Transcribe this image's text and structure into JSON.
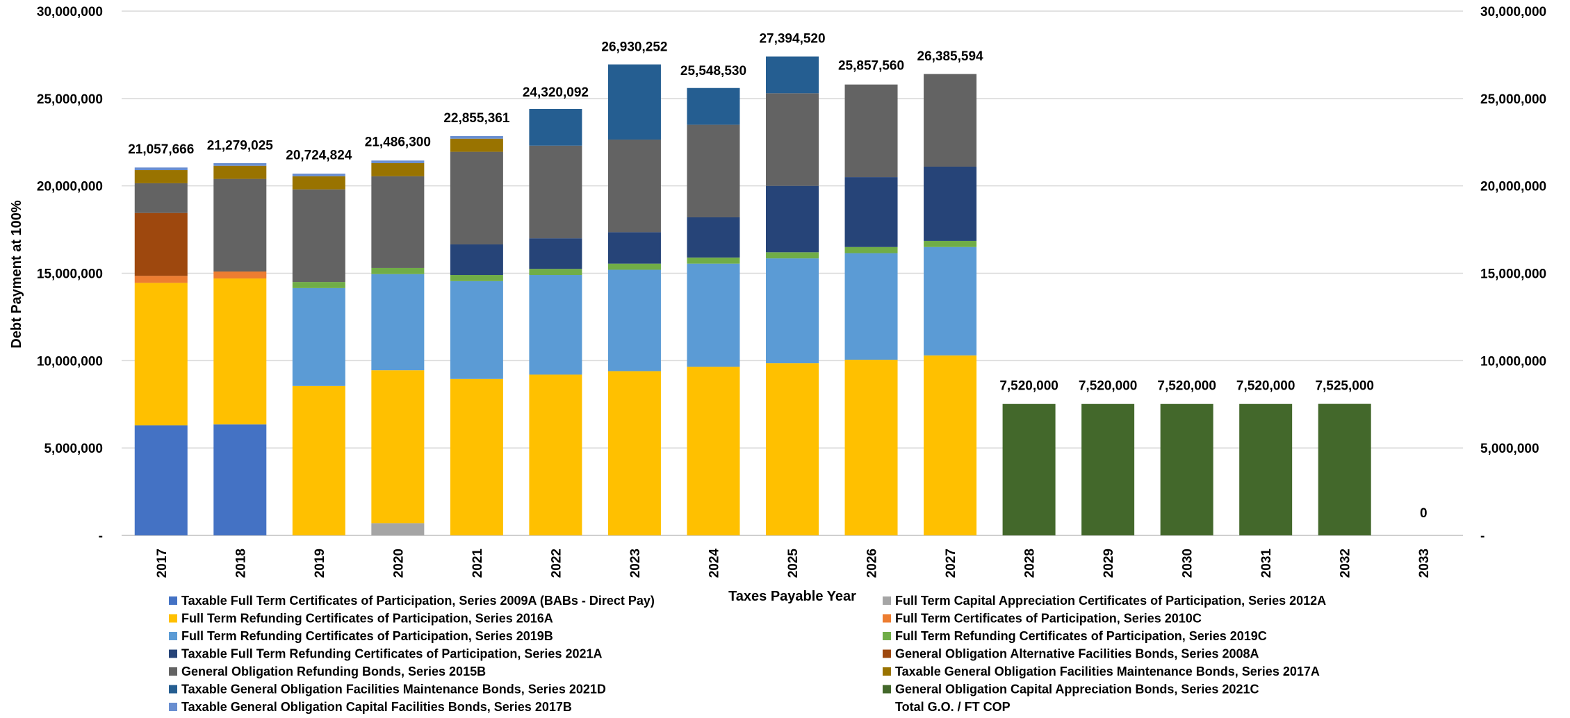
{
  "chart_data": {
    "type": "bar",
    "stacked": true,
    "title": "",
    "xlabel": "Taxes Payable Year",
    "ylabel": "Debt Payment at 100%",
    "ylim": [
      0,
      30000000
    ],
    "y_ticks": [
      {
        "value": 0,
        "label": "-"
      },
      {
        "value": 5000000,
        "label": "5,000,000"
      },
      {
        "value": 10000000,
        "label": "10,000,000"
      },
      {
        "value": 15000000,
        "label": "15,000,000"
      },
      {
        "value": 20000000,
        "label": "20,000,000"
      },
      {
        "value": 25000000,
        "label": "25,000,000"
      },
      {
        "value": 30000000,
        "label": "30,000,000"
      }
    ],
    "secondary_y_axis": true,
    "grid": true,
    "legend_position": "bottom",
    "categories": [
      "2017",
      "2018",
      "2019",
      "2020",
      "2021",
      "2022",
      "2023",
      "2024",
      "2025",
      "2026",
      "2027",
      "2028",
      "2029",
      "2030",
      "2031",
      "2032",
      "2033"
    ],
    "series": [
      {
        "name": "Taxable Full Term Certificates of Participation, Series 2009A (BABs - Direct Pay)",
        "color": "#4472C4",
        "values": [
          6300000,
          6350000,
          0,
          0,
          0,
          0,
          0,
          0,
          0,
          0,
          0,
          0,
          0,
          0,
          0,
          0,
          0
        ]
      },
      {
        "name": "Full Term Capital Appreciation Certificates of Participation, Series 2012A",
        "color": "#A5A5A5",
        "values": [
          0,
          0,
          0,
          700000,
          0,
          0,
          0,
          0,
          0,
          0,
          0,
          0,
          0,
          0,
          0,
          0,
          0
        ]
      },
      {
        "name": "Full Term Refunding Certificates of Participation, Series 2016A",
        "color": "#FFC000",
        "values": [
          8150000,
          8350000,
          8550000,
          8750000,
          8950000,
          9200000,
          9400000,
          9650000,
          9850000,
          10050000,
          10300000,
          0,
          0,
          0,
          0,
          0,
          0
        ]
      },
      {
        "name": "Full Term Certificates of Participation, Series 2010C",
        "color": "#ED7D31",
        "values": [
          400000,
          400000,
          0,
          0,
          0,
          0,
          0,
          0,
          0,
          0,
          0,
          0,
          0,
          0,
          0,
          0,
          0
        ]
      },
      {
        "name": "Full Term Refunding Certificates of Participation, Series 2019B",
        "color": "#5B9BD5",
        "values": [
          0,
          0,
          5600000,
          5500000,
          5600000,
          5700000,
          5800000,
          5900000,
          6000000,
          6100000,
          6200000,
          0,
          0,
          0,
          0,
          0,
          0
        ]
      },
      {
        "name": "Full Term Refunding Certificates of Participation, Series 2019C",
        "color": "#70AD47",
        "values": [
          0,
          0,
          350000,
          350000,
          350000,
          350000,
          350000,
          350000,
          350000,
          350000,
          350000,
          0,
          0,
          0,
          0,
          0,
          0
        ]
      },
      {
        "name": "Taxable Full Term Refunding Certificates of Participation, Series 2021A",
        "color": "#264478",
        "values": [
          0,
          0,
          0,
          0,
          1750000,
          1750000,
          1800000,
          2300000,
          3800000,
          4000000,
          4250000,
          0,
          0,
          0,
          0,
          0,
          0
        ]
      },
      {
        "name": "General Obligation Alternative Facilities Bonds, Series 2008A",
        "color": "#9E480E",
        "values": [
          3600000,
          0,
          0,
          0,
          0,
          0,
          0,
          0,
          0,
          0,
          0,
          0,
          0,
          0,
          0,
          0,
          0
        ]
      },
      {
        "name": "General Obligation Refunding Bonds, Series 2015B",
        "color": "#636363",
        "values": [
          1700000,
          5300000,
          5300000,
          5250000,
          5300000,
          5300000,
          5300000,
          5300000,
          5300000,
          5300000,
          5300000,
          0,
          0,
          0,
          0,
          0,
          0
        ]
      },
      {
        "name": "Taxable General Obligation Facilities Maintenance Bonds, Series 2017A",
        "color": "#997300",
        "values": [
          750000,
          750000,
          750000,
          750000,
          750000,
          0,
          0,
          0,
          0,
          0,
          0,
          0,
          0,
          0,
          0,
          0,
          0
        ]
      },
      {
        "name": "Taxable General Obligation Facilities Maintenance Bonds, Series 2021D",
        "color": "#255E91",
        "values": [
          0,
          0,
          0,
          0,
          0,
          2100000,
          4300000,
          2100000,
          2100000,
          0,
          0,
          0,
          0,
          0,
          0,
          0,
          0
        ]
      },
      {
        "name": "General Obligation Capital Appreciation Bonds, Series 2021C",
        "color": "#43682B",
        "values": [
          0,
          0,
          0,
          0,
          0,
          0,
          0,
          0,
          0,
          0,
          0,
          7520000,
          7520000,
          7520000,
          7520000,
          7525000,
          0
        ]
      },
      {
        "name": "Taxable General Obligation Capital Facilities Bonds, Series 2017B",
        "color": "#698ED0",
        "values": [
          150000,
          150000,
          150000,
          150000,
          150000,
          0,
          0,
          0,
          0,
          0,
          0,
          0,
          0,
          0,
          0,
          0,
          0
        ]
      }
    ],
    "totals_series_name": "Total G.O. / FT COP",
    "totals": [
      {
        "value": 21057666,
        "label": "21,057,666"
      },
      {
        "value": 21279025,
        "label": "21,279,025"
      },
      {
        "value": 20724824,
        "label": "20,724,824"
      },
      {
        "value": 21486300,
        "label": "21,486,300"
      },
      {
        "value": 22855361,
        "label": "22,855,361"
      },
      {
        "value": 24320092,
        "label": "24,320,092"
      },
      {
        "value": 26930252,
        "label": "26,930,252"
      },
      {
        "value": 25548530,
        "label": "25,548,530"
      },
      {
        "value": 27394520,
        "label": "27,394,520"
      },
      {
        "value": 25857560,
        "label": "25,857,560"
      },
      {
        "value": 26385594,
        "label": "26,385,594"
      },
      {
        "value": 7520000,
        "label": "7,520,000"
      },
      {
        "value": 7520000,
        "label": "7,520,000"
      },
      {
        "value": 7520000,
        "label": "7,520,000"
      },
      {
        "value": 7520000,
        "label": "7,520,000"
      },
      {
        "value": 7525000,
        "label": "7,525,000"
      },
      {
        "value": 0,
        "label": "0"
      }
    ],
    "legend_layout": {
      "left_column": [
        0,
        2,
        4,
        6,
        8,
        10,
        12
      ],
      "right_column": [
        1,
        3,
        5,
        7,
        9,
        11
      ]
    }
  }
}
